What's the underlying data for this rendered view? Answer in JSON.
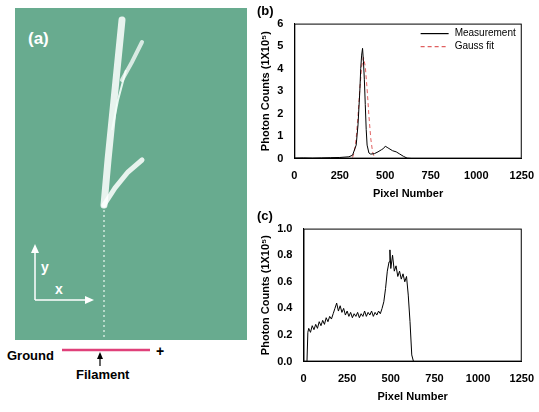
{
  "panel_a": {
    "letter": "(a)",
    "y_axis": "y",
    "x_axis": "x",
    "left_label": "Ground",
    "right_label": "+",
    "arrow_label": "Filament"
  },
  "chart_data": [
    {
      "type": "line",
      "title": "(b)",
      "x_label": "Pixel Number",
      "y_label": "Photon Counts (1X10⁵)",
      "xlim": [
        0,
        1250
      ],
      "xticks": [
        0,
        250,
        500,
        750,
        1000,
        1250
      ],
      "ylim": [
        0,
        6
      ],
      "yticks": [
        0,
        1,
        2,
        3,
        4,
        5,
        6
      ],
      "grid": false,
      "legend": "top right",
      "series": [
        {
          "name": "Measurement",
          "color": "#000000",
          "line_style": "solid",
          "x": [
            0,
            50,
            100,
            150,
            200,
            250,
            300,
            320,
            340,
            350,
            360,
            365,
            370,
            375,
            380,
            385,
            390,
            395,
            400,
            410,
            420,
            440,
            460,
            480,
            490,
            500,
            510,
            520,
            540,
            560,
            580,
            600,
            620,
            650,
            700,
            800,
            900,
            1000,
            1100,
            1200,
            1250
          ],
          "values": [
            0.02,
            0.03,
            0.02,
            0.03,
            0.04,
            0.05,
            0.08,
            0.15,
            0.6,
            1.5,
            3.0,
            4.0,
            4.6,
            4.9,
            4.3,
            3.5,
            2.4,
            1.3,
            0.6,
            0.25,
            0.2,
            0.22,
            0.3,
            0.4,
            0.45,
            0.55,
            0.5,
            0.45,
            0.35,
            0.3,
            0.2,
            0.1,
            0.02,
            0,
            0,
            0,
            0,
            0,
            0,
            0,
            0
          ]
        },
        {
          "name": "Gauss fit",
          "color": "#e06060",
          "line_style": "dashed",
          "x": [
            320,
            330,
            340,
            350,
            360,
            370,
            380,
            390,
            400,
            410,
            420,
            430,
            440
          ],
          "values": [
            0.05,
            0.3,
            0.9,
            1.9,
            3.1,
            4.1,
            4.5,
            4.1,
            3.1,
            1.9,
            0.9,
            0.3,
            0.05
          ]
        }
      ]
    },
    {
      "type": "line",
      "title": "(c)",
      "x_label": "Pixel Number",
      "y_label": "Photon Counts (1X10⁵)",
      "xlim": [
        0,
        1250
      ],
      "xticks": [
        0,
        250,
        500,
        750,
        1000,
        1250
      ],
      "ylim": [
        0,
        1
      ],
      "yticks": [
        {
          "value": 0,
          "label": "0.0"
        },
        0.2,
        0.4,
        0.6,
        0.8,
        {
          "value": 1,
          "label": "1.0"
        }
      ],
      "grid": false,
      "series": [
        {
          "color": "#000000",
          "line_style": "solid",
          "x": [
            0,
            20,
            25,
            30,
            40,
            50,
            60,
            70,
            80,
            90,
            100,
            110,
            120,
            130,
            140,
            150,
            160,
            170,
            180,
            190,
            200,
            210,
            220,
            230,
            240,
            250,
            260,
            270,
            280,
            290,
            300,
            310,
            320,
            330,
            340,
            350,
            360,
            370,
            380,
            390,
            400,
            410,
            420,
            430,
            440,
            450,
            460,
            470,
            480,
            490,
            495,
            500,
            510,
            520,
            530,
            540,
            550,
            560,
            570,
            580,
            590,
            600,
            610,
            620,
            630,
            700,
            800,
            900,
            1000,
            1100,
            1200,
            1250
          ],
          "values": [
            0,
            0,
            0.22,
            0.25,
            0.22,
            0.27,
            0.24,
            0.28,
            0.25,
            0.3,
            0.27,
            0.31,
            0.28,
            0.33,
            0.3,
            0.34,
            0.32,
            0.36,
            0.4,
            0.44,
            0.38,
            0.42,
            0.37,
            0.4,
            0.35,
            0.38,
            0.34,
            0.37,
            0.33,
            0.36,
            0.34,
            0.37,
            0.33,
            0.36,
            0.34,
            0.38,
            0.34,
            0.37,
            0.35,
            0.38,
            0.34,
            0.37,
            0.35,
            0.38,
            0.36,
            0.4,
            0.45,
            0.55,
            0.68,
            0.75,
            0.84,
            0.7,
            0.8,
            0.68,
            0.72,
            0.64,
            0.68,
            0.62,
            0.66,
            0.6,
            0.64,
            0.5,
            0.3,
            0.05,
            0,
            0,
            0,
            0,
            0,
            0,
            0,
            0
          ]
        }
      ]
    }
  ]
}
